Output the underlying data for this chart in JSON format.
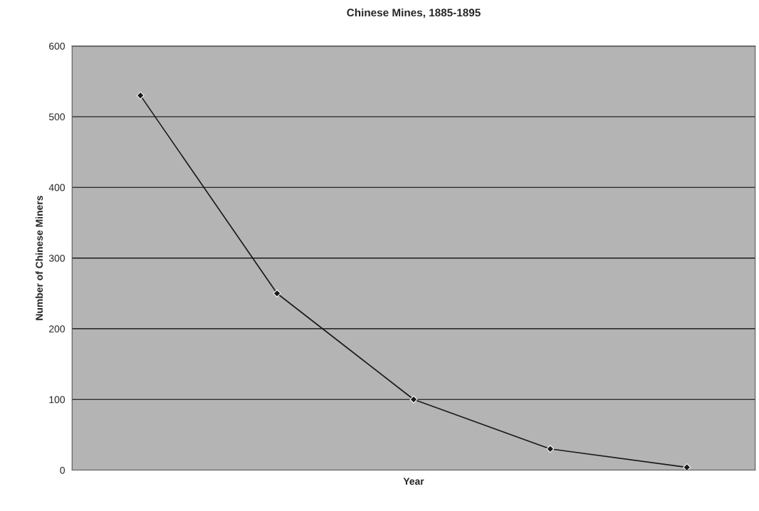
{
  "chart_data": {
    "type": "line",
    "title": "Chinese Mines, 1885-1895",
    "xlabel": "Year",
    "ylabel": "Number of Chinese Miners",
    "categories": [
      null,
      null,
      null,
      null,
      null
    ],
    "series": [
      {
        "color": "#1a1a1a",
        "values": [
          530,
          250,
          100,
          30,
          4
        ]
      }
    ],
    "ylim": [
      0,
      600
    ],
    "yticks": [
      0,
      100,
      200,
      300,
      400,
      500,
      600
    ],
    "grid": "y",
    "marker": "diamond",
    "line_style": "solid",
    "legend": false
  }
}
